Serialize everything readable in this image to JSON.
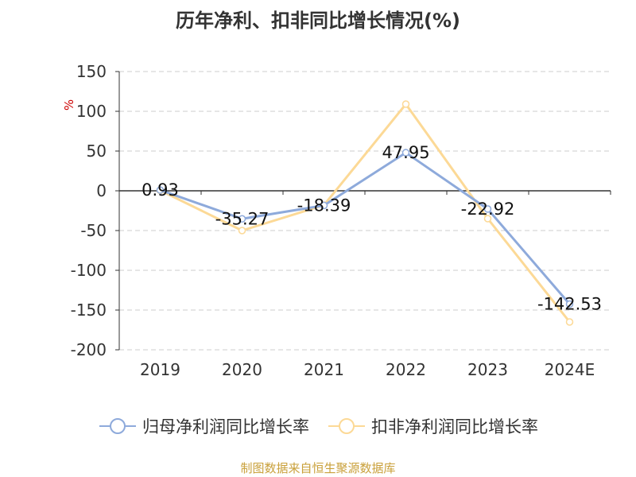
{
  "title": "历年净利、扣非同比增长情况(%)",
  "source": "制图数据来自恒生聚源数据库",
  "colors": {
    "series1": "#8eaadb",
    "series2": "#fcd996",
    "axis": "#333333",
    "grid": "#cccccc",
    "unit": "#cc0000",
    "source": "#c9a03a"
  },
  "chart_data": {
    "type": "line",
    "title": "历年净利、扣非同比增长情况(%)",
    "ylabel": "%",
    "ylim": [
      -200,
      150
    ],
    "yticks": [
      150,
      100,
      50,
      0,
      -50,
      -100,
      -150,
      -200
    ],
    "grid": true,
    "legend_position": "bottom",
    "categories": [
      "2019",
      "2020",
      "2021",
      "2022",
      "2023",
      "2024E"
    ],
    "series": [
      {
        "name": "归母净利润同比增长率",
        "values": [
          0.93,
          -35.27,
          -18.39,
          47.95,
          -22.92,
          -142.53
        ],
        "labels": [
          "0.93",
          "-35.27",
          "-18.39",
          "47.95",
          "-22.92",
          "-142.53"
        ]
      },
      {
        "name": "扣非净利润同比增长率",
        "values": [
          0.5,
          -50,
          -18,
          109,
          -35,
          -165
        ]
      }
    ]
  }
}
